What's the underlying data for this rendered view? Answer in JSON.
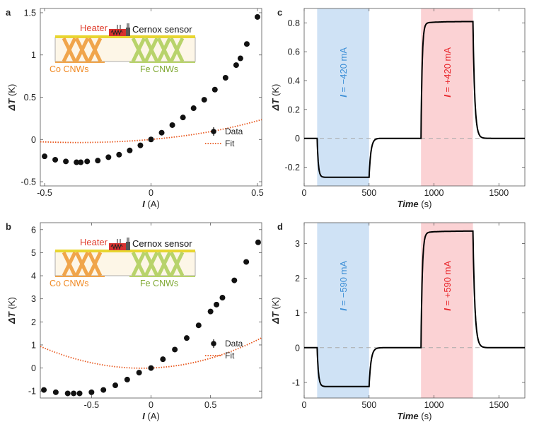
{
  "chart_data": [
    {
      "panel": "a",
      "type": "scatter",
      "xlabel": "I",
      "xunit": "(A)",
      "ylabel": "ΔT",
      "yunit": "(K)",
      "xlim": [
        -0.52,
        0.52
      ],
      "ylim": [
        -0.55,
        1.55
      ],
      "xticks": [
        -0.5,
        0,
        0.5
      ],
      "xtick_labels": [
        "-0.5",
        "0",
        "0.5"
      ],
      "yticks": [
        -0.5,
        0,
        0.5,
        1,
        1.5
      ],
      "ytick_labels": [
        "-0.5",
        "0",
        "0.5",
        "1",
        "1.5"
      ],
      "grid": false,
      "legend_position": "right",
      "series": [
        {
          "name": "Data",
          "kind": "points",
          "color": "#111111",
          "x": [
            -0.5,
            -0.45,
            -0.4,
            -0.35,
            -0.33,
            -0.3,
            -0.25,
            -0.2,
            -0.15,
            -0.1,
            -0.05,
            0,
            0.05,
            0.1,
            0.15,
            0.2,
            0.25,
            0.3,
            0.35,
            0.4,
            0.42,
            0.45,
            0.5
          ],
          "y": [
            -0.2,
            -0.24,
            -0.26,
            -0.27,
            -0.27,
            -0.26,
            -0.25,
            -0.21,
            -0.18,
            -0.13,
            -0.07,
            0.0,
            0.08,
            0.17,
            0.26,
            0.37,
            0.47,
            0.59,
            0.73,
            0.88,
            0.96,
            1.13,
            1.45
          ]
        },
        {
          "name": "Fit",
          "kind": "line",
          "color": "#e8571d",
          "style": "dotted",
          "coeffs": [
            0.22,
            0.37,
            0.12,
            0.05
          ]
        }
      ],
      "inset": {
        "heater": "Heater",
        "sensor": "Cernox sensor",
        "left_label": "Co CNWs",
        "right_label": "Fe CNWs"
      }
    },
    {
      "panel": "b",
      "type": "scatter",
      "xlabel": "I",
      "xunit": "(A)",
      "ylabel": "ΔT",
      "yunit": "(K)",
      "xlim": [
        -0.93,
        0.93
      ],
      "ylim": [
        -1.3,
        6.3
      ],
      "xticks": [
        -0.5,
        0,
        0.5
      ],
      "xtick_labels": [
        "-0.5",
        "0",
        "0.5"
      ],
      "yticks": [
        -1,
        0,
        1,
        2,
        3,
        4,
        5,
        6
      ],
      "ytick_labels": [
        "-1",
        "0",
        "1",
        "2",
        "3",
        "4",
        "5",
        "6"
      ],
      "grid": false,
      "legend_position": "right",
      "series": [
        {
          "name": "Data",
          "kind": "points",
          "color": "#111111",
          "x": [
            -0.9,
            -0.8,
            -0.7,
            -0.65,
            -0.6,
            -0.5,
            -0.4,
            -0.3,
            -0.2,
            -0.1,
            0,
            0.1,
            0.2,
            0.3,
            0.4,
            0.5,
            0.55,
            0.6,
            0.7,
            0.8,
            0.9
          ],
          "y": [
            -0.95,
            -1.05,
            -1.1,
            -1.1,
            -1.1,
            -1.05,
            -0.95,
            -0.75,
            -0.5,
            -0.2,
            0.0,
            0.38,
            0.8,
            1.3,
            1.85,
            2.45,
            2.75,
            3.05,
            3.8,
            4.6,
            5.45
          ]
        },
        {
          "name": "Fit",
          "kind": "line",
          "color": "#e8571d",
          "style": "dotted",
          "coeffs": [
            0.2,
            1.3,
            0.0,
            0.0
          ]
        }
      ],
      "inset": {
        "heater": "Heater",
        "sensor": "Cernox sensor",
        "left_label": "Co CNWs",
        "right_label": "Fe CNWs"
      }
    },
    {
      "panel": "c",
      "type": "line",
      "xlabel": "Time",
      "xunit": "(s)",
      "ylabel": "ΔT",
      "yunit": "(K)",
      "xlim": [
        0,
        1700
      ],
      "ylim": [
        -0.33,
        0.9
      ],
      "xticks": [
        0,
        500,
        1000,
        1500
      ],
      "xtick_labels": [
        "0",
        "500",
        "1000",
        "1500"
      ],
      "yticks": [
        -0.2,
        0,
        0.2,
        0.4,
        0.6,
        0.8
      ],
      "ytick_labels": [
        "-0.2",
        "0",
        "0.2",
        "0.4",
        "0.6",
        "0.8"
      ],
      "grid": false,
      "regions": [
        {
          "x0": 100,
          "x1": 500,
          "color": "#cfe2f5",
          "label": "I",
          "label_value": " = −420 mA",
          "text_color": "#3d8fd6"
        },
        {
          "x0": 900,
          "x1": 1300,
          "color": "#fbd2d4",
          "label": "I",
          "label_value": " = +420 mA",
          "text_color": "#e8262b"
        }
      ],
      "series": [
        {
          "name": "",
          "kind": "step-response",
          "color": "#000000",
          "on_intervals": [
            [
              100,
              500
            ],
            [
              900,
              1300
            ]
          ],
          "levels": [
            -0.27,
            0.81
          ],
          "tau_on": 9,
          "tau_off": 14,
          "drift": 0.012
        }
      ]
    },
    {
      "panel": "d",
      "type": "line",
      "xlabel": "Time",
      "xunit": "(s)",
      "ylabel": "ΔT",
      "yunit": "(K)",
      "xlim": [
        0,
        1700
      ],
      "ylim": [
        -1.45,
        3.6
      ],
      "xticks": [
        0,
        500,
        1000,
        1500
      ],
      "xtick_labels": [
        "0",
        "500",
        "1000",
        "1500"
      ],
      "yticks": [
        -1,
        0,
        1,
        2,
        3
      ],
      "ytick_labels": [
        "-1",
        "0",
        "1",
        "2",
        "3"
      ],
      "grid": false,
      "regions": [
        {
          "x0": 100,
          "x1": 500,
          "color": "#cfe2f5",
          "label": "I",
          "label_value": " = −590 mA",
          "text_color": "#3d8fd6"
        },
        {
          "x0": 900,
          "x1": 1300,
          "color": "#fbd2d4",
          "label": "I",
          "label_value": " = +590 mA",
          "text_color": "#e8262b"
        }
      ],
      "series": [
        {
          "name": "",
          "kind": "step-response",
          "color": "#000000",
          "on_intervals": [
            [
              100,
              500
            ],
            [
              900,
              1300
            ]
          ],
          "levels": [
            -1.12,
            3.36
          ],
          "tau_on": 10,
          "tau_off": 15,
          "drift": 0.05
        }
      ]
    }
  ]
}
